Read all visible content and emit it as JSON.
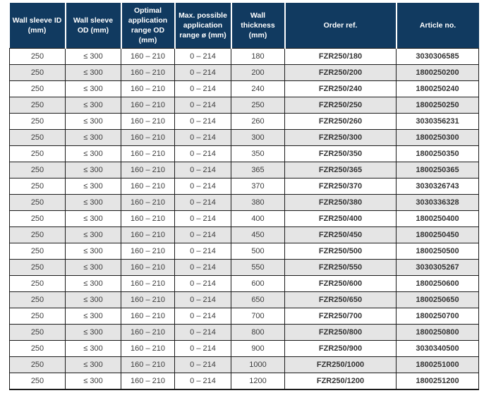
{
  "colors": {
    "header_bg": "#113a60",
    "header_text": "#ffffff",
    "row_alt_bg": "#e5e5e5",
    "border": "#1b1b1b",
    "cell_text": "#3d3d3d"
  },
  "table": {
    "columns": [
      "Wall sleeve ID (mm)",
      "Wall sleeve OD (mm)",
      "Optimal application range OD (mm)",
      "Max. possible application range ø (mm)",
      "Wall thickness (mm)",
      "Order ref.",
      "Article no."
    ],
    "rows": [
      {
        "wall_sleeve_id": "250",
        "wall_sleeve_od": "≤ 300",
        "optimal_range": "160 – 210",
        "max_range": "0 – 214",
        "wall_thickness": "180",
        "order_ref": "FZR250/180",
        "article_no": "3030306585"
      },
      {
        "wall_sleeve_id": "250",
        "wall_sleeve_od": "≤ 300",
        "optimal_range": "160 – 210",
        "max_range": "0 – 214",
        "wall_thickness": "200",
        "order_ref": "FZR250/200",
        "article_no": "1800250200"
      },
      {
        "wall_sleeve_id": "250",
        "wall_sleeve_od": "≤ 300",
        "optimal_range": "160 – 210",
        "max_range": "0 – 214",
        "wall_thickness": "240",
        "order_ref": "FZR250/240",
        "article_no": "1800250240"
      },
      {
        "wall_sleeve_id": "250",
        "wall_sleeve_od": "≤ 300",
        "optimal_range": "160 – 210",
        "max_range": "0 – 214",
        "wall_thickness": "250",
        "order_ref": "FZR250/250",
        "article_no": "1800250250"
      },
      {
        "wall_sleeve_id": "250",
        "wall_sleeve_od": "≤ 300",
        "optimal_range": "160 – 210",
        "max_range": "0 – 214",
        "wall_thickness": "260",
        "order_ref": "FZR250/260",
        "article_no": "3030356231"
      },
      {
        "wall_sleeve_id": "250",
        "wall_sleeve_od": "≤ 300",
        "optimal_range": "160 – 210",
        "max_range": "0 – 214",
        "wall_thickness": "300",
        "order_ref": "FZR250/300",
        "article_no": "1800250300"
      },
      {
        "wall_sleeve_id": "250",
        "wall_sleeve_od": "≤ 300",
        "optimal_range": "160 – 210",
        "max_range": "0 – 214",
        "wall_thickness": "350",
        "order_ref": "FZR250/350",
        "article_no": "1800250350"
      },
      {
        "wall_sleeve_id": "250",
        "wall_sleeve_od": "≤ 300",
        "optimal_range": "160 – 210",
        "max_range": "0 – 214",
        "wall_thickness": "365",
        "order_ref": "FZR250/365",
        "article_no": "1800250365"
      },
      {
        "wall_sleeve_id": "250",
        "wall_sleeve_od": "≤ 300",
        "optimal_range": "160 – 210",
        "max_range": "0 – 214",
        "wall_thickness": "370",
        "order_ref": "FZR250/370",
        "article_no": "3030326743"
      },
      {
        "wall_sleeve_id": "250",
        "wall_sleeve_od": "≤ 300",
        "optimal_range": "160 – 210",
        "max_range": "0 – 214",
        "wall_thickness": "380",
        "order_ref": "FZR250/380",
        "article_no": "3030336328"
      },
      {
        "wall_sleeve_id": "250",
        "wall_sleeve_od": "≤ 300",
        "optimal_range": "160 – 210",
        "max_range": "0 – 214",
        "wall_thickness": "400",
        "order_ref": "FZR250/400",
        "article_no": "1800250400"
      },
      {
        "wall_sleeve_id": "250",
        "wall_sleeve_od": "≤ 300",
        "optimal_range": "160 – 210",
        "max_range": "0 – 214",
        "wall_thickness": "450",
        "order_ref": "FZR250/450",
        "article_no": "1800250450"
      },
      {
        "wall_sleeve_id": "250",
        "wall_sleeve_od": "≤ 300",
        "optimal_range": "160 – 210",
        "max_range": "0 – 214",
        "wall_thickness": "500",
        "order_ref": "FZR250/500",
        "article_no": "1800250500"
      },
      {
        "wall_sleeve_id": "250",
        "wall_sleeve_od": "≤ 300",
        "optimal_range": "160 – 210",
        "max_range": "0 – 214",
        "wall_thickness": "550",
        "order_ref": "FZR250/550",
        "article_no": "3030305267"
      },
      {
        "wall_sleeve_id": "250",
        "wall_sleeve_od": "≤ 300",
        "optimal_range": "160 – 210",
        "max_range": "0 – 214",
        "wall_thickness": "600",
        "order_ref": "FZR250/600",
        "article_no": "1800250600"
      },
      {
        "wall_sleeve_id": "250",
        "wall_sleeve_od": "≤ 300",
        "optimal_range": "160 – 210",
        "max_range": "0 – 214",
        "wall_thickness": "650",
        "order_ref": "FZR250/650",
        "article_no": "1800250650"
      },
      {
        "wall_sleeve_id": "250",
        "wall_sleeve_od": "≤ 300",
        "optimal_range": "160 – 210",
        "max_range": "0 – 214",
        "wall_thickness": "700",
        "order_ref": "FZR250/700",
        "article_no": "1800250700"
      },
      {
        "wall_sleeve_id": "250",
        "wall_sleeve_od": "≤ 300",
        "optimal_range": "160 – 210",
        "max_range": "0 – 214",
        "wall_thickness": "800",
        "order_ref": "FZR250/800",
        "article_no": "1800250800"
      },
      {
        "wall_sleeve_id": "250",
        "wall_sleeve_od": "≤ 300",
        "optimal_range": "160 – 210",
        "max_range": "0 – 214",
        "wall_thickness": "900",
        "order_ref": "FZR250/900",
        "article_no": "3030340500"
      },
      {
        "wall_sleeve_id": "250",
        "wall_sleeve_od": "≤ 300",
        "optimal_range": "160 – 210",
        "max_range": "0 – 214",
        "wall_thickness": "1000",
        "order_ref": "FZR250/1000",
        "article_no": "1800251000"
      },
      {
        "wall_sleeve_id": "250",
        "wall_sleeve_od": "≤ 300",
        "optimal_range": "160 – 210",
        "max_range": "0 – 214",
        "wall_thickness": "1200",
        "order_ref": "FZR250/1200",
        "article_no": "1800251200"
      }
    ]
  }
}
